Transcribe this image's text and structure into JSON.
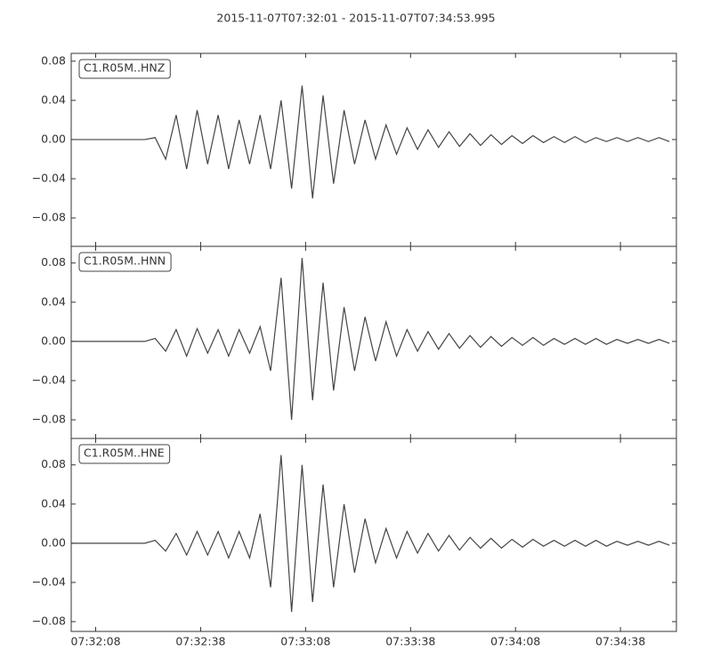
{
  "chart_data": [
    {
      "type": "line",
      "title": "2015-11-07T07:32:01  -  2015-11-07T07:34:53.995",
      "xlim": [
        "07:32:01",
        "07:34:53.995"
      ],
      "ylim": [
        -0.109,
        0.088
      ],
      "yticks": [
        {
          "value": -0.08,
          "label": "−0.08"
        },
        {
          "value": -0.04,
          "label": "−0.04"
        },
        {
          "value": 0,
          "label": "0.00"
        },
        0.04,
        0.08
      ],
      "x": [
        "07:32:01",
        "07:32:04",
        "07:32:07",
        "07:32:10",
        "07:32:13",
        "07:32:16",
        "07:32:19",
        "07:32:22",
        "07:32:25",
        "07:32:28",
        "07:32:31",
        "07:32:34",
        "07:32:37",
        "07:32:40",
        "07:32:43",
        "07:32:46",
        "07:32:49",
        "07:32:52",
        "07:32:55",
        "07:32:58",
        "07:33:01",
        "07:33:04",
        "07:33:07",
        "07:33:10",
        "07:33:13",
        "07:33:16",
        "07:33:19",
        "07:33:22",
        "07:33:25",
        "07:33:28",
        "07:33:31",
        "07:33:34",
        "07:33:37",
        "07:33:40",
        "07:33:43",
        "07:33:46",
        "07:33:49",
        "07:33:52",
        "07:33:55",
        "07:33:58",
        "07:34:01",
        "07:34:04",
        "07:34:07",
        "07:34:10",
        "07:34:13",
        "07:34:16",
        "07:34:19",
        "07:34:22",
        "07:34:25",
        "07:34:28",
        "07:34:31",
        "07:34:34",
        "07:34:37",
        "07:34:40",
        "07:34:43",
        "07:34:46",
        "07:34:49",
        "07:34:52"
      ],
      "series": [
        {
          "name": "C1.R05M..HNZ",
          "color": "#444444",
          "values": [
            0,
            0,
            0,
            0,
            0,
            0,
            0,
            0,
            0.002,
            -0.02,
            0.025,
            -0.03,
            0.03,
            -0.025,
            0.025,
            -0.03,
            0.02,
            -0.025,
            0.025,
            -0.03,
            0.04,
            -0.05,
            0.055,
            -0.06,
            0.045,
            -0.045,
            0.03,
            -0.025,
            0.02,
            -0.02,
            0.015,
            -0.015,
            0.012,
            -0.01,
            0.01,
            -0.008,
            0.008,
            -0.007,
            0.006,
            -0.006,
            0.005,
            -0.005,
            0.004,
            -0.004,
            0.004,
            -0.003,
            0.003,
            -0.003,
            0.003,
            -0.003,
            0.002,
            -0.002,
            0.002,
            -0.002,
            0.002,
            -0.002,
            0.002,
            -0.002
          ]
        }
      ]
    },
    {
      "type": "line",
      "xlim": [
        "07:32:01",
        "07:34:53.995"
      ],
      "ylim": [
        -0.099,
        0.097
      ],
      "yticks": [
        {
          "value": -0.08,
          "label": "−0.08"
        },
        {
          "value": -0.04,
          "label": "−0.04"
        },
        {
          "value": 0,
          "label": "0.00"
        },
        0.04,
        0.08
      ],
      "x": [
        "07:32:01",
        "07:32:04",
        "07:32:07",
        "07:32:10",
        "07:32:13",
        "07:32:16",
        "07:32:19",
        "07:32:22",
        "07:32:25",
        "07:32:28",
        "07:32:31",
        "07:32:34",
        "07:32:37",
        "07:32:40",
        "07:32:43",
        "07:32:46",
        "07:32:49",
        "07:32:52",
        "07:32:55",
        "07:32:58",
        "07:33:01",
        "07:33:04",
        "07:33:07",
        "07:33:10",
        "07:33:13",
        "07:33:16",
        "07:33:19",
        "07:33:22",
        "07:33:25",
        "07:33:28",
        "07:33:31",
        "07:33:34",
        "07:33:37",
        "07:33:40",
        "07:33:43",
        "07:33:46",
        "07:33:49",
        "07:33:52",
        "07:33:55",
        "07:33:58",
        "07:34:01",
        "07:34:04",
        "07:34:07",
        "07:34:10",
        "07:34:13",
        "07:34:16",
        "07:34:19",
        "07:34:22",
        "07:34:25",
        "07:34:28",
        "07:34:31",
        "07:34:34",
        "07:34:37",
        "07:34:40",
        "07:34:43",
        "07:34:46",
        "07:34:49",
        "07:34:52"
      ],
      "series": [
        {
          "name": "C1.R05M..HNN",
          "color": "#444444",
          "values": [
            0,
            0,
            0,
            0,
            0,
            0,
            0,
            0,
            0.003,
            -0.01,
            0.012,
            -0.015,
            0.013,
            -0.012,
            0.012,
            -0.015,
            0.012,
            -0.012,
            0.015,
            -0.03,
            0.065,
            -0.08,
            0.085,
            -0.06,
            0.06,
            -0.05,
            0.035,
            -0.03,
            0.025,
            -0.02,
            0.02,
            -0.015,
            0.012,
            -0.01,
            0.01,
            -0.008,
            0.008,
            -0.007,
            0.006,
            -0.006,
            0.005,
            -0.005,
            0.004,
            -0.004,
            0.004,
            -0.004,
            0.003,
            -0.003,
            0.003,
            -0.003,
            0.003,
            -0.003,
            0.002,
            -0.002,
            0.002,
            -0.002,
            0.002,
            -0.002
          ]
        }
      ]
    },
    {
      "type": "line",
      "xlim": [
        "07:32:01",
        "07:34:53.995"
      ],
      "ylim": [
        -0.09,
        0.107
      ],
      "yticks": [
        {
          "value": -0.08,
          "label": "−0.08"
        },
        {
          "value": -0.04,
          "label": "−0.04"
        },
        {
          "value": 0,
          "label": "0.00"
        },
        0.04,
        0.08
      ],
      "xticks": [
        "07:32:08",
        "07:32:38",
        "07:33:08",
        "07:33:38",
        "07:34:08",
        "07:34:38"
      ],
      "x": [
        "07:32:01",
        "07:32:04",
        "07:32:07",
        "07:32:10",
        "07:32:13",
        "07:32:16",
        "07:32:19",
        "07:32:22",
        "07:32:25",
        "07:32:28",
        "07:32:31",
        "07:32:34",
        "07:32:37",
        "07:32:40",
        "07:32:43",
        "07:32:46",
        "07:32:49",
        "07:32:52",
        "07:32:55",
        "07:32:58",
        "07:33:01",
        "07:33:04",
        "07:33:07",
        "07:33:10",
        "07:33:13",
        "07:33:16",
        "07:33:19",
        "07:33:22",
        "07:33:25",
        "07:33:28",
        "07:33:31",
        "07:33:34",
        "07:33:37",
        "07:33:40",
        "07:33:43",
        "07:33:46",
        "07:33:49",
        "07:33:52",
        "07:33:55",
        "07:33:58",
        "07:34:01",
        "07:34:04",
        "07:34:07",
        "07:34:10",
        "07:34:13",
        "07:34:16",
        "07:34:19",
        "07:34:22",
        "07:34:25",
        "07:34:28",
        "07:34:31",
        "07:34:34",
        "07:34:37",
        "07:34:40",
        "07:34:43",
        "07:34:46",
        "07:34:49",
        "07:34:52"
      ],
      "series": [
        {
          "name": "C1.R05M..HNE",
          "color": "#444444",
          "values": [
            0,
            0,
            0,
            0,
            0,
            0,
            0,
            0,
            0.003,
            -0.008,
            0.01,
            -0.012,
            0.012,
            -0.012,
            0.012,
            -0.015,
            0.012,
            -0.015,
            0.03,
            -0.045,
            0.09,
            -0.07,
            0.08,
            -0.06,
            0.06,
            -0.045,
            0.04,
            -0.03,
            0.025,
            -0.02,
            0.015,
            -0.015,
            0.012,
            -0.01,
            0.01,
            -0.008,
            0.008,
            -0.007,
            0.006,
            -0.005,
            0.005,
            -0.005,
            0.004,
            -0.004,
            0.004,
            -0.003,
            0.003,
            -0.003,
            0.003,
            -0.003,
            0.003,
            -0.003,
            0.002,
            -0.002,
            0.002,
            -0.002,
            0.002,
            -0.002
          ]
        }
      ]
    }
  ]
}
